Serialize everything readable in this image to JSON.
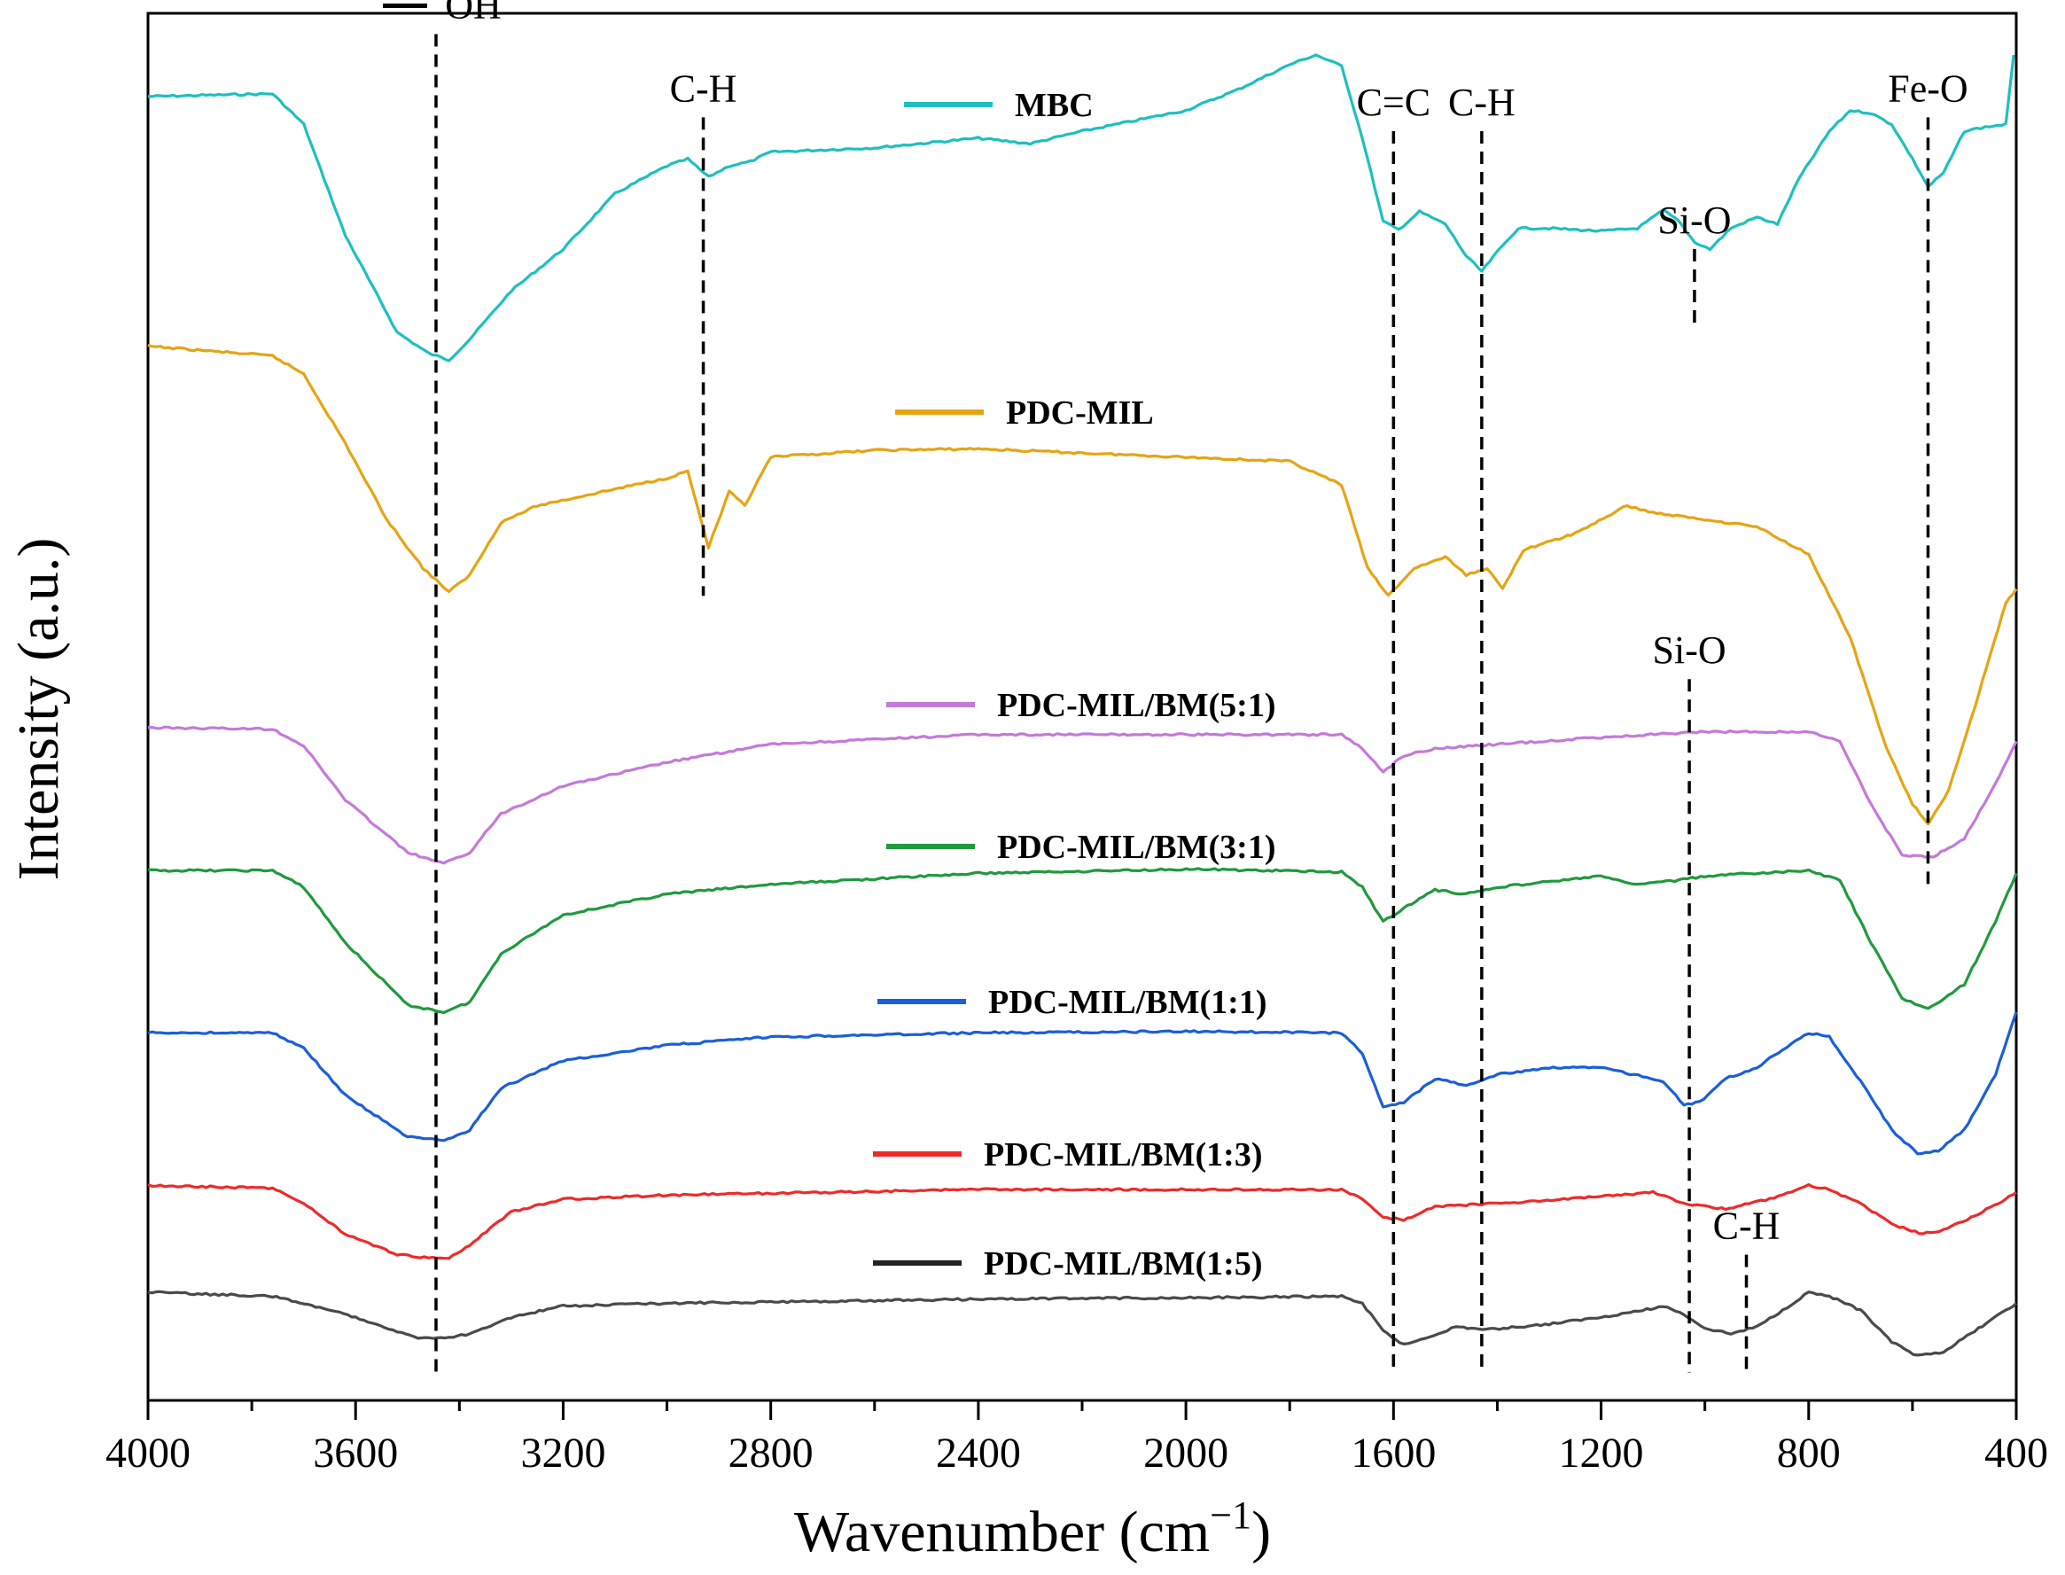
{
  "chart_data": {
    "type": "line",
    "title": "",
    "xlabel": "Wavenumber (cm⁻¹)",
    "ylabel": "Intensity (a.u.)",
    "xlim": [
      4000,
      400
    ],
    "x_reversed": true,
    "ylim": [
      0,
      100
    ],
    "y_ticks_shown": false,
    "grid": false,
    "x_ticks": [
      4000,
      3600,
      3200,
      2800,
      2400,
      2000,
      1600,
      1200,
      800,
      400
    ],
    "x_minor_ticks": [
      3800,
      3400,
      3000,
      2600,
      2200,
      1800,
      1400,
      1000,
      600
    ],
    "legend_placement": "inline-center",
    "series": [
      {
        "name": "MBC",
        "color": "#1fbfbf",
        "points": [
          [
            4000,
            94
          ],
          [
            3760,
            94.2
          ],
          [
            3700,
            92
          ],
          [
            3620,
            84
          ],
          [
            3520,
            77
          ],
          [
            3460,
            75.5
          ],
          [
            3420,
            75
          ],
          [
            3380,
            76.5
          ],
          [
            3300,
            80
          ],
          [
            3200,
            83
          ],
          [
            3100,
            87
          ],
          [
            3000,
            89
          ],
          [
            2960,
            89.5
          ],
          [
            2920,
            88.2
          ],
          [
            2880,
            89
          ],
          [
            2840,
            89.3
          ],
          [
            2800,
            90
          ],
          [
            2600,
            90.3
          ],
          [
            2400,
            91
          ],
          [
            2300,
            90.6
          ],
          [
            2200,
            91.5
          ],
          [
            2000,
            93
          ],
          [
            1900,
            94.5
          ],
          [
            1800,
            96.3
          ],
          [
            1750,
            97
          ],
          [
            1700,
            96.2
          ],
          [
            1660,
            91
          ],
          [
            1620,
            85
          ],
          [
            1590,
            84.4
          ],
          [
            1550,
            85.7
          ],
          [
            1500,
            84.8
          ],
          [
            1460,
            82.5
          ],
          [
            1430,
            81.4
          ],
          [
            1400,
            82.8
          ],
          [
            1360,
            84.5
          ],
          [
            1300,
            84.5
          ],
          [
            1200,
            84.3
          ],
          [
            1130,
            84.5
          ],
          [
            1080,
            85.8
          ],
          [
            1050,
            85
          ],
          [
            1020,
            83.5
          ],
          [
            990,
            83
          ],
          [
            950,
            84.5
          ],
          [
            900,
            85.3
          ],
          [
            860,
            84.8
          ],
          [
            820,
            88
          ],
          [
            760,
            91.5
          ],
          [
            720,
            93
          ],
          [
            680,
            92.8
          ],
          [
            640,
            92
          ],
          [
            600,
            89.5
          ],
          [
            570,
            87.5
          ],
          [
            540,
            88.5
          ],
          [
            500,
            91.5
          ],
          [
            460,
            91.8
          ],
          [
            420,
            92
          ],
          [
            405,
            97
          ]
        ]
      },
      {
        "name": "PDC-MIL",
        "color": "#e6a414",
        "points": [
          [
            4000,
            76
          ],
          [
            3760,
            75.3
          ],
          [
            3700,
            74
          ],
          [
            3620,
            69
          ],
          [
            3540,
            63.5
          ],
          [
            3470,
            60
          ],
          [
            3420,
            58.3
          ],
          [
            3380,
            59.5
          ],
          [
            3320,
            63.3
          ],
          [
            3250,
            64.5
          ],
          [
            3100,
            65.7
          ],
          [
            3000,
            66.5
          ],
          [
            2960,
            67
          ],
          [
            2920,
            61.5
          ],
          [
            2880,
            65.5
          ],
          [
            2850,
            64.5
          ],
          [
            2800,
            68
          ],
          [
            2600,
            68.5
          ],
          [
            2400,
            68.6
          ],
          [
            2200,
            68.3
          ],
          [
            2000,
            68
          ],
          [
            1800,
            67.7
          ],
          [
            1700,
            66
          ],
          [
            1650,
            60
          ],
          [
            1610,
            58
          ],
          [
            1560,
            60
          ],
          [
            1500,
            60.8
          ],
          [
            1460,
            59.5
          ],
          [
            1420,
            60
          ],
          [
            1390,
            58.5
          ],
          [
            1350,
            61.3
          ],
          [
            1250,
            62.5
          ],
          [
            1150,
            64.5
          ],
          [
            1100,
            64
          ],
          [
            1000,
            63.5
          ],
          [
            900,
            63
          ],
          [
            800,
            61
          ],
          [
            720,
            55
          ],
          [
            650,
            47
          ],
          [
            600,
            43
          ],
          [
            570,
            41.5
          ],
          [
            530,
            44
          ],
          [
            480,
            50
          ],
          [
            420,
            57.5
          ],
          [
            400,
            58.5
          ]
        ]
      },
      {
        "name": "PDC-MIL/BM(5:1)",
        "color": "#c47ad8",
        "points": [
          [
            4000,
            48.5
          ],
          [
            3760,
            48.4
          ],
          [
            3700,
            47.2
          ],
          [
            3620,
            43.3
          ],
          [
            3500,
            39.5
          ],
          [
            3430,
            38.7
          ],
          [
            3380,
            39.5
          ],
          [
            3320,
            42.3
          ],
          [
            3200,
            44.3
          ],
          [
            3000,
            46
          ],
          [
            2800,
            47.3
          ],
          [
            2400,
            48
          ],
          [
            2000,
            48
          ],
          [
            1700,
            48
          ],
          [
            1660,
            47
          ],
          [
            1620,
            45.3
          ],
          [
            1580,
            46.5
          ],
          [
            1520,
            47
          ],
          [
            1400,
            47.3
          ],
          [
            1200,
            47.8
          ],
          [
            1000,
            48.2
          ],
          [
            800,
            48.2
          ],
          [
            740,
            47.5
          ],
          [
            680,
            43
          ],
          [
            620,
            39.3
          ],
          [
            560,
            39.2
          ],
          [
            500,
            40.5
          ],
          [
            440,
            44.5
          ],
          [
            400,
            47.5
          ]
        ]
      },
      {
        "name": "PDC-MIL/BM(3:1)",
        "color": "#1f9a3d",
        "points": [
          [
            4000,
            38.2
          ],
          [
            3760,
            38.2
          ],
          [
            3700,
            37
          ],
          [
            3620,
            33
          ],
          [
            3500,
            28.5
          ],
          [
            3430,
            28
          ],
          [
            3380,
            28.7
          ],
          [
            3320,
            32.2
          ],
          [
            3200,
            35
          ],
          [
            3000,
            36.5
          ],
          [
            2800,
            37.2
          ],
          [
            2400,
            38
          ],
          [
            2000,
            38.3
          ],
          [
            1700,
            38.1
          ],
          [
            1660,
            37
          ],
          [
            1620,
            34.5
          ],
          [
            1580,
            35.5
          ],
          [
            1520,
            36.8
          ],
          [
            1460,
            36.5
          ],
          [
            1400,
            37
          ],
          [
            1200,
            37.8
          ],
          [
            1140,
            37.2
          ],
          [
            1050,
            37.5
          ],
          [
            1000,
            37.8
          ],
          [
            800,
            38.2
          ],
          [
            740,
            37.5
          ],
          [
            680,
            33
          ],
          [
            620,
            29
          ],
          [
            570,
            28.2
          ],
          [
            500,
            30
          ],
          [
            440,
            34.5
          ],
          [
            400,
            38
          ]
        ]
      },
      {
        "name": "PDC-MIL/BM(1:1)",
        "color": "#1a5fd8",
        "points": [
          [
            4000,
            26.5
          ],
          [
            3760,
            26.5
          ],
          [
            3700,
            25.4
          ],
          [
            3620,
            22
          ],
          [
            3500,
            19
          ],
          [
            3430,
            18.7
          ],
          [
            3380,
            19.5
          ],
          [
            3320,
            22.5
          ],
          [
            3200,
            24.5
          ],
          [
            3000,
            25.6
          ],
          [
            2800,
            26.2
          ],
          [
            2400,
            26.5
          ],
          [
            2000,
            26.6
          ],
          [
            1700,
            26.5
          ],
          [
            1660,
            25
          ],
          [
            1620,
            21.2
          ],
          [
            1580,
            21.5
          ],
          [
            1520,
            23.2
          ],
          [
            1460,
            22.7
          ],
          [
            1400,
            23.5
          ],
          [
            1300,
            24
          ],
          [
            1200,
            24
          ],
          [
            1080,
            23
          ],
          [
            1040,
            21.3
          ],
          [
            1010,
            21.5
          ],
          [
            960,
            23.2
          ],
          [
            900,
            24
          ],
          [
            850,
            25.3
          ],
          [
            800,
            26.5
          ],
          [
            760,
            26.2
          ],
          [
            700,
            23
          ],
          [
            640,
            19.5
          ],
          [
            590,
            17.8
          ],
          [
            550,
            18
          ],
          [
            500,
            19.5
          ],
          [
            440,
            23.5
          ],
          [
            400,
            28
          ]
        ]
      },
      {
        "name": "PDC-MIL/BM(1:3)",
        "color": "#ee2a2a",
        "points": [
          [
            4000,
            15.5
          ],
          [
            3760,
            15.3
          ],
          [
            3700,
            14.2
          ],
          [
            3620,
            12
          ],
          [
            3520,
            10.5
          ],
          [
            3460,
            10.3
          ],
          [
            3420,
            10.3
          ],
          [
            3380,
            11.2
          ],
          [
            3300,
            13.6
          ],
          [
            3200,
            14.5
          ],
          [
            3000,
            14.8
          ],
          [
            2400,
            15.2
          ],
          [
            2000,
            15.2
          ],
          [
            1700,
            15.2
          ],
          [
            1660,
            14.5
          ],
          [
            1620,
            13.2
          ],
          [
            1580,
            13
          ],
          [
            1520,
            14
          ],
          [
            1460,
            14.1
          ],
          [
            1400,
            14.2
          ],
          [
            1200,
            14.7
          ],
          [
            1100,
            15
          ],
          [
            1040,
            14.2
          ],
          [
            1000,
            14
          ],
          [
            960,
            13.8
          ],
          [
            900,
            14.3
          ],
          [
            850,
            14.8
          ],
          [
            800,
            15.5
          ],
          [
            760,
            15.2
          ],
          [
            700,
            14.2
          ],
          [
            640,
            12.7
          ],
          [
            580,
            12
          ],
          [
            540,
            12.3
          ],
          [
            480,
            13.3
          ],
          [
            420,
            14.5
          ],
          [
            400,
            15
          ]
        ]
      },
      {
        "name": "PDC-MIL/BM(1:5)",
        "color": "#4a4a4a",
        "points": [
          [
            4000,
            7.8
          ],
          [
            3760,
            7.5
          ],
          [
            3700,
            7
          ],
          [
            3600,
            6
          ],
          [
            3480,
            4.5
          ],
          [
            3420,
            4.5
          ],
          [
            3380,
            4.8
          ],
          [
            3300,
            6
          ],
          [
            3200,
            6.8
          ],
          [
            3000,
            7
          ],
          [
            2800,
            7.1
          ],
          [
            2400,
            7.3
          ],
          [
            2000,
            7.4
          ],
          [
            1700,
            7.5
          ],
          [
            1660,
            7
          ],
          [
            1620,
            5
          ],
          [
            1580,
            4
          ],
          [
            1530,
            4.6
          ],
          [
            1480,
            5.3
          ],
          [
            1420,
            5.1
          ],
          [
            1300,
            5.5
          ],
          [
            1200,
            6
          ],
          [
            1120,
            6.5
          ],
          [
            1080,
            6.8
          ],
          [
            1040,
            6.2
          ],
          [
            1000,
            5.2
          ],
          [
            950,
            4.8
          ],
          [
            900,
            5.3
          ],
          [
            850,
            6.5
          ],
          [
            800,
            7.8
          ],
          [
            760,
            7.5
          ],
          [
            700,
            6.5
          ],
          [
            640,
            4.2
          ],
          [
            590,
            3.2
          ],
          [
            540,
            3.5
          ],
          [
            480,
            5
          ],
          [
            420,
            6.5
          ],
          [
            400,
            7
          ]
        ]
      }
    ],
    "legend": [
      {
        "label": "MBC",
        "color": "#1fbfbf"
      },
      {
        "label": "PDC-MIL",
        "color": "#e6a414"
      },
      {
        "label": "PDC-MIL/BM(5:1)",
        "color": "#c47ad8"
      },
      {
        "label": "PDC-MIL/BM(3:1)",
        "color": "#1f9a3d"
      },
      {
        "label": "PDC-MIL/BM(1:1)",
        "color": "#1a5fd8"
      },
      {
        "label": "PDC-MIL/BM(1:3)",
        "color": "#ee2a2a"
      },
      {
        "label": "PDC-MIL/BM(1:5)",
        "color": "#222222"
      }
    ],
    "annotations": [
      {
        "label": "OH",
        "x": 3445,
        "line_top": 98.5,
        "line_bottom": 2.0,
        "with_legend_dash": true
      },
      {
        "label": "C-H",
        "x": 2930,
        "line_top": 92.5,
        "line_bottom": 58.0
      },
      {
        "label": "C=C",
        "x": 1600,
        "line_top": 91.5,
        "line_bottom": 2.0
      },
      {
        "label": "C-H",
        "x": 1430,
        "line_top": 91.5,
        "line_bottom": 2.0
      },
      {
        "label": "Si-O",
        "x": 1020,
        "line_top": 83.0,
        "line_bottom": 77.5
      },
      {
        "label": "Fe-O",
        "x": 570,
        "line_top": 92.5,
        "line_bottom": 37.0
      },
      {
        "label": "Si-O",
        "x": 1030,
        "line_top": 52.0,
        "line_bottom": 2.0
      },
      {
        "label": "C-H",
        "x": 920,
        "line_top": 10.5,
        "line_bottom": 2.0
      }
    ]
  }
}
